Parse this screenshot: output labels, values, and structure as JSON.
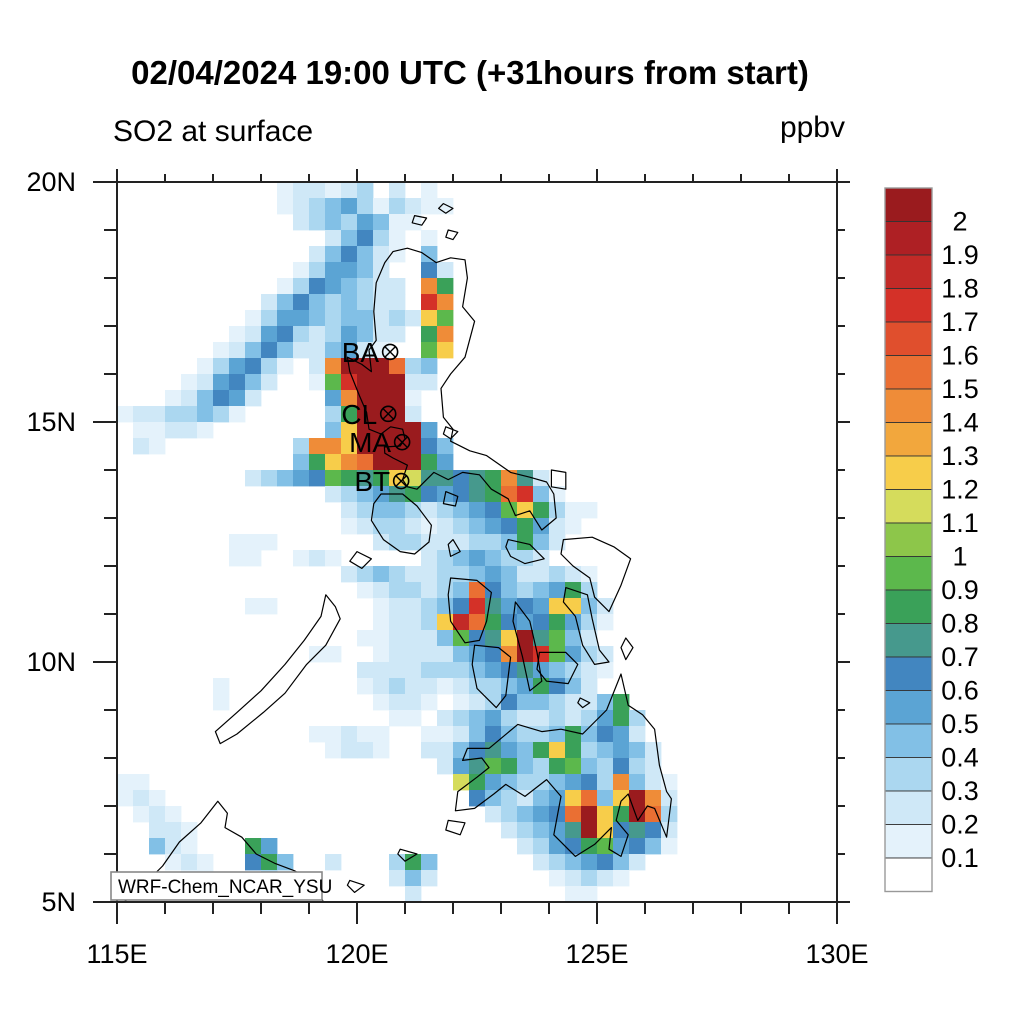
{
  "title": "02/04/2024 19:00 UTC (+31hours from start)",
  "variable_label": "SO2 at surface",
  "units_label": "ppbv",
  "watermark": "WRF-Chem_NCAR_YSU",
  "axes": {
    "x_tick_labels": [
      "115E",
      "120E",
      "125E",
      "130E"
    ],
    "x_tick_lons": [
      115,
      120,
      125,
      130
    ],
    "y_tick_labels": [
      "20N",
      "15N",
      "10N",
      "5N"
    ],
    "y_tick_lats": [
      20,
      15,
      10,
      5
    ],
    "lon_range": [
      115,
      130
    ],
    "lat_range": [
      5,
      20
    ],
    "minor_tick_deg": 1
  },
  "stations": [
    {
      "id": "BA",
      "lon": 120.69,
      "lat": 16.46
    },
    {
      "id": "CL",
      "lon": 120.65,
      "lat": 15.17
    },
    {
      "id": "MA",
      "lon": 120.94,
      "lat": 14.58
    },
    {
      "id": "BT",
      "lon": 120.92,
      "lat": 13.77
    }
  ],
  "colorbar": {
    "labels": [
      "2",
      "1.9",
      "1.8",
      "1.7",
      "1.6",
      "1.5",
      "1.4",
      "1.3",
      "1.2",
      "1.1",
      "1",
      "0.9",
      "0.8",
      "0.7",
      "0.6",
      "0.5",
      "0.4",
      "0.3",
      "0.2",
      "0.1"
    ],
    "colors_top_to_bottom": [
      "#9A1B1E",
      "#AE2024",
      "#C22A27",
      "#D43128",
      "#E04F2D",
      "#EA6F33",
      "#EF8C38",
      "#F2A73D",
      "#F7CD4A",
      "#D5DC5C",
      "#8DC64A",
      "#5CB84C",
      "#3AA159",
      "#46998D",
      "#4286C0",
      "#5BA4D4",
      "#82C0E6",
      "#ABD7F0",
      "#CFE8F7",
      "#E4F2FB",
      "#FFFFFF"
    ]
  },
  "chart_data": {
    "type": "heatmap",
    "variable": "SO2 at surface",
    "units": "ppbv",
    "lon_min": 115,
    "lat_max": 20,
    "cell_size_deg": 0.3333,
    "ncols": 45,
    "nrows": 45,
    "no_data_char": ".",
    "level_chars": "123456789ABCDEFGHIJK",
    "level_lower_bounds": [
      0.1,
      0.2,
      0.3,
      0.4,
      0.5,
      0.6,
      0.7,
      0.8,
      0.9,
      1.0,
      1.1,
      1.2,
      1.3,
      1.4,
      1.5,
      1.6,
      1.7,
      1.8,
      1.9,
      2.0
    ],
    "rows": [
      "..........122123.2.1.........................",
      "..........12345313211........................",
      "...........23435411..........................",
      ".............24631.1.........................",
      "............246421.4.........................",
      "...........135542..62........................",
      "..........13654322.E8........................",
      ".........246434322.HE........................",
      "........13554344232C9........................",
      ".......12563235422.8E........................",
      "......12464224521..9C........................",
      ".....135631.2EKKKF34.........................",
      "....125642..19HKKK22.........................",
      "...124652....5EKKK1..........................",
      "12233431.....38KKK2..........................",
      ".11221.......4CKKKK5.........................",
      ".21........3EECKKKK64........................",
      "...........48CEFKKK85........................",
      "........234569878CB77678E72..................",
      ".............23457865678FH41.................",
      "..............23443234569C8311...............",
      "..............123321234568521................",
      ".......111......233222334842.................",
      ".......11..121.....23454332..................",
      "..............2343223345422321...............",
      "...............1233234F6434583...............",
      "........11......122346H7565CC42..............",
      "................1223CIF86568531..............",
      "...............112224967CK7942...............",
      "............11..12222456EKH9532..............",
      "...............2222333456754321..............",
      "......1........123221233458642...............",
      "......1.........1221.12364432248.............",
      ".................11.2345322323583............",
      "............11211..11246433484652............",
      ".............1221..22467548C834542...........",
      "....................25798438943632...........",
      "11...................B854334563E421..........",
      "121...................643245CF4CKE2..........",
      ".121...................23456FKC8KF3..........",
      "..221...................23457KC6762..........",
      "..421...85...............2356895641..........",
      "...121..684..2...384......2345642............",
      "....11...3.......242.......12321.............",
      "..................2.........11..............."
    ]
  }
}
